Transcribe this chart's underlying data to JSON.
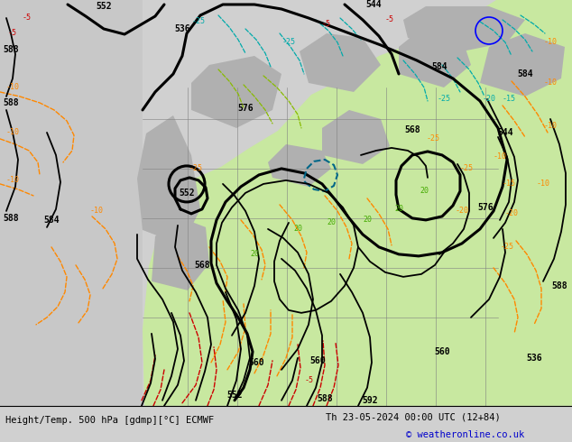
{
  "title_left": "Height/Temp. 500 hPa [gdmp][°C] ECMWF",
  "title_right": "Th 23-05-2024 00:00 UTC (12+84)",
  "copyright": "© weatheronline.co.uk",
  "bg_color": "#d0d0d0",
  "map_bg": "#e0e0e0",
  "green_fill": "#c8e8a0",
  "gray_fill": "#b0b0b0",
  "bottom_bar_color": "#e8e8e8",
  "text_color_left": "#000000",
  "text_color_right": "#000000",
  "copyright_color": "#0000cc",
  "figsize": [
    6.34,
    4.9
  ],
  "dpi": 100
}
